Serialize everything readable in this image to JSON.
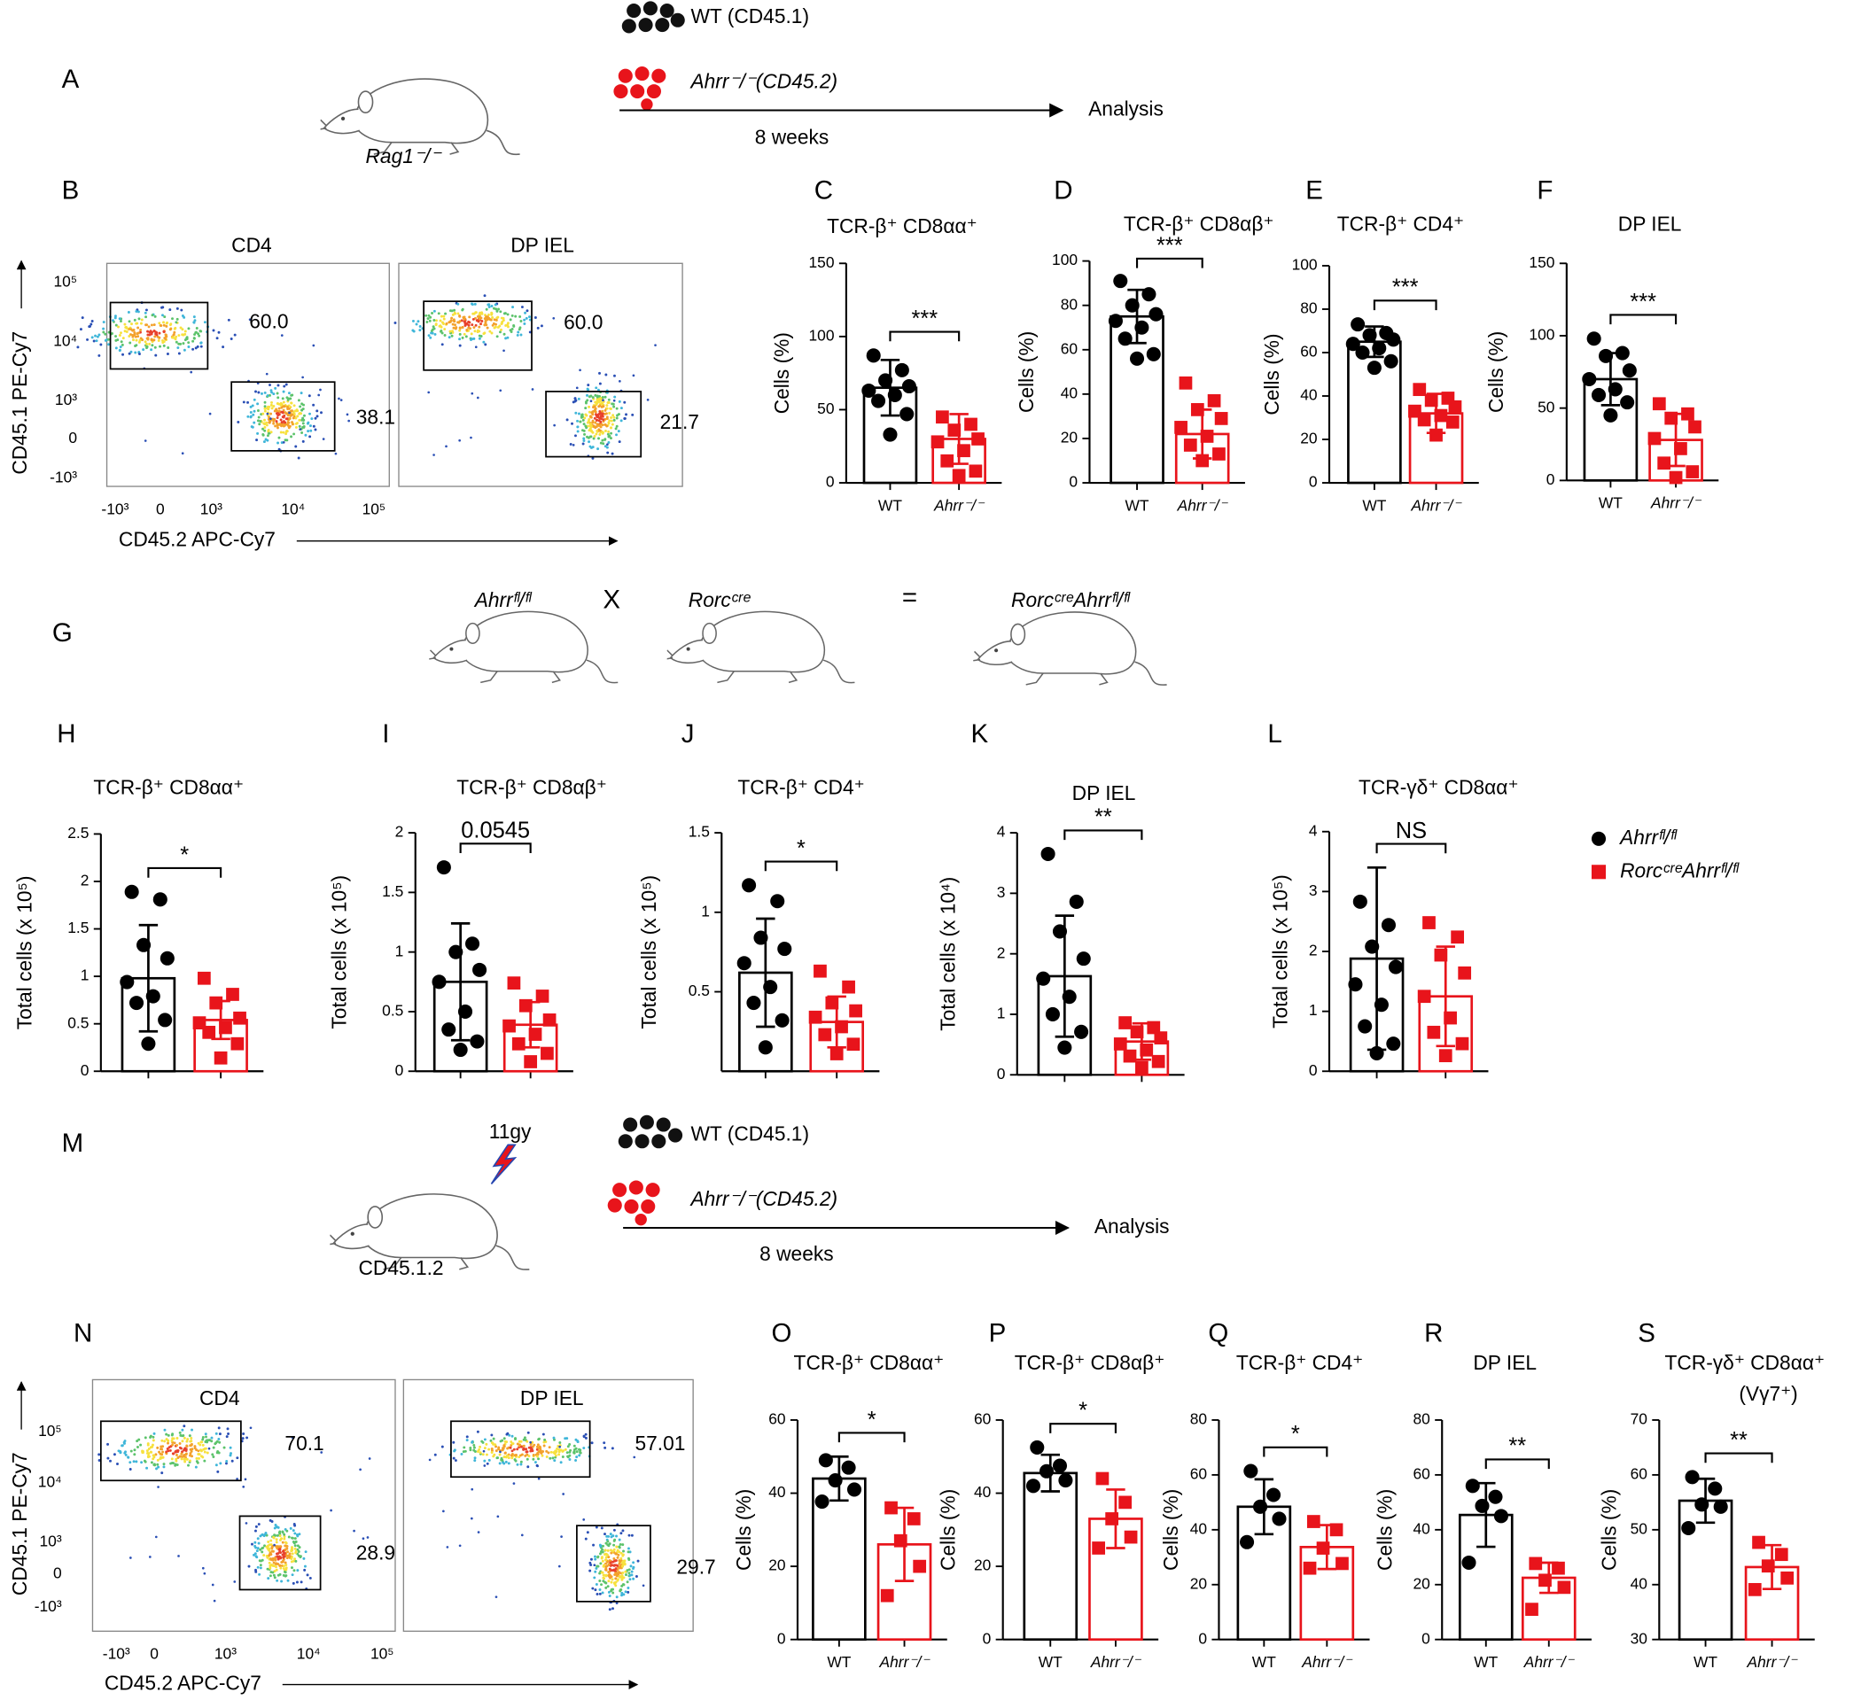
{
  "panel_A": {
    "letter": "A",
    "donor_wt": "WT (CD45.1)",
    "donor_ko": "Ahrr⁻/⁻(CD45.2)",
    "readout": "Analysis",
    "duration": "8 weeks",
    "recipient": "Rag1⁻/⁻"
  },
  "panel_G": {
    "letter": "G",
    "parent_1": "Ahrrᶠˡ/ᶠˡ",
    "cross": "X",
    "parent_2": "Rorcᶜʳᵉ",
    "equals": "=",
    "offspring": "RorcᶜʳᵉAhrrᶠˡ/ᶠˡ"
  },
  "panel_M": {
    "letter": "M",
    "irradiation": "11gy",
    "donor_wt": "WT (CD45.1)",
    "donor_ko": "Ahrr⁻/⁻(CD45.2)",
    "readout": "Analysis",
    "duration": "8 weeks",
    "recipient": "CD45.1.2"
  },
  "flow_panels": [
    {
      "letter": "B",
      "ylabel": "CD45.1 PE-Cy7",
      "xlabel": "CD45.2 APC-Cy7",
      "yticks": [
        "10⁵",
        "10⁴",
        "10³",
        "0",
        "-10³"
      ],
      "xticks": [
        "-10³",
        "0",
        "10³",
        "10⁴",
        "10⁵"
      ],
      "plots": [
        {
          "title": "CD4",
          "gates": [
            "60.0",
            "38.1"
          ]
        },
        {
          "title": "DP IEL",
          "gates": [
            "60.0",
            "21.7"
          ]
        }
      ]
    },
    {
      "letter": "N",
      "ylabel": "CD45.1 PE-Cy7",
      "xlabel": "CD45.2 APC-Cy7",
      "yticks": [
        "10⁵",
        "10⁴",
        "10³",
        "0",
        "-10³"
      ],
      "xticks": [
        "-10³",
        "0",
        "10³",
        "10⁴",
        "10⁵"
      ],
      "plots": [
        {
          "title": "CD4",
          "gates": [
            "70.1",
            "28.9"
          ]
        },
        {
          "title": "DP IEL",
          "gates": [
            "57.01",
            "29.7"
          ]
        }
      ]
    }
  ],
  "legend": {
    "entries": [
      {
        "name": "Ahrrᶠˡ/ᶠˡ",
        "color": "#000000",
        "marker": "circle"
      },
      {
        "name": "RorcᶜʳᵉAhrrᶠˡ/ᶠˡ",
        "color": "#e8141b",
        "marker": "square"
      }
    ]
  },
  "chart_data": [
    {
      "type": "bar",
      "letter": "C",
      "title": "TCR-β⁺ CD8αα⁺",
      "ylabel": "Cells (%)",
      "categories": [
        "WT",
        "Ahrr⁻/⁻"
      ],
      "values": [
        65,
        30
      ],
      "errors": [
        19,
        17
      ],
      "points": [
        [
          87,
          77,
          70,
          66,
          63,
          60,
          56,
          47,
          33
        ],
        [
          45,
          40,
          36,
          30,
          28,
          22,
          15,
          8,
          5
        ]
      ],
      "colors": [
        "#000000",
        "#e8141b"
      ],
      "markers": [
        "circle",
        "square"
      ],
      "ylim": [
        0,
        150
      ],
      "yticks": [
        0,
        50,
        100,
        150
      ],
      "significance": "***"
    },
    {
      "type": "bar",
      "letter": "D",
      "title": "TCR-β⁺ CD8αβ⁺",
      "ylabel": "Cells (%)",
      "categories": [
        "WT",
        "Ahrr⁻/⁻"
      ],
      "values": [
        75,
        22
      ],
      "errors": [
        12,
        11
      ],
      "points": [
        [
          91,
          85,
          80,
          76,
          73,
          70,
          65,
          58,
          56
        ],
        [
          45,
          37,
          33,
          29,
          25,
          21,
          17,
          13,
          10
        ]
      ],
      "colors": [
        "#000000",
        "#e8141b"
      ],
      "markers": [
        "circle",
        "square"
      ],
      "ylim": [
        0,
        100
      ],
      "yticks": [
        0,
        20,
        40,
        60,
        80,
        100
      ],
      "significance": "***"
    },
    {
      "type": "bar",
      "letter": "E",
      "title": "TCR-β⁺ CD4⁺",
      "ylabel": "Cells (%)",
      "categories": [
        "WT",
        "Ahrr⁻/⁻"
      ],
      "values": [
        65,
        32
      ],
      "errors": [
        7,
        9
      ],
      "points": [
        [
          73,
          69,
          68,
          66,
          64,
          62,
          60,
          56,
          53
        ],
        [
          43,
          39,
          38,
          35,
          33,
          31,
          29,
          28,
          22
        ]
      ],
      "colors": [
        "#000000",
        "#e8141b"
      ],
      "markers": [
        "circle",
        "square"
      ],
      "ylim": [
        0,
        100
      ],
      "yticks": [
        0,
        20,
        40,
        60,
        80,
        100
      ],
      "significance": "***"
    },
    {
      "type": "bar",
      "letter": "F",
      "title": "DP IEL",
      "ylabel": "Cells (%)",
      "categories": [
        "WT",
        "Ahrr⁻/⁻"
      ],
      "values": [
        70,
        28
      ],
      "errors": [
        18,
        18
      ],
      "points": [
        [
          98,
          88,
          86,
          76,
          70,
          63,
          59,
          54,
          45
        ],
        [
          53,
          46,
          43,
          37,
          29,
          22,
          12,
          6,
          2
        ]
      ],
      "colors": [
        "#000000",
        "#e8141b"
      ],
      "markers": [
        "circle",
        "square"
      ],
      "ylim": [
        0,
        150
      ],
      "yticks": [
        0,
        50,
        100,
        150
      ],
      "significance": "***"
    },
    {
      "type": "bar",
      "letter": "H",
      "title": "TCR-β⁺ CD8αα⁺",
      "ylabel": "Total cells (x 10⁵)",
      "categories": [
        null,
        null
      ],
      "values": [
        0.98,
        0.54
      ],
      "errors": [
        0.56,
        0.2
      ],
      "points": [
        [
          1.89,
          1.81,
          1.33,
          1.19,
          0.94,
          0.79,
          0.72,
          0.54,
          0.29
        ],
        [
          0.98,
          0.81,
          0.72,
          0.56,
          0.51,
          0.46,
          0.41,
          0.29,
          0.14
        ]
      ],
      "colors": [
        "#000000",
        "#e8141b"
      ],
      "markers": [
        "circle",
        "square"
      ],
      "ylim": [
        0,
        2.5
      ],
      "yticks": [
        0,
        0.5,
        1,
        1.5,
        2,
        2.5
      ],
      "significance": "*"
    },
    {
      "type": "bar",
      "letter": "I",
      "title": "TCR-β⁺ CD8αβ⁺",
      "ylabel": "Total cells (x 10⁵)",
      "categories": [
        null,
        null
      ],
      "values": [
        0.75,
        0.39
      ],
      "errors": [
        0.49,
        0.19
      ],
      "points": [
        [
          1.71,
          1.07,
          1.0,
          0.85,
          0.75,
          0.5,
          0.35,
          0.25,
          0.18
        ],
        [
          0.74,
          0.63,
          0.55,
          0.43,
          0.38,
          0.31,
          0.23,
          0.15,
          0.08
        ]
      ],
      "colors": [
        "#000000",
        "#e8141b"
      ],
      "markers": [
        "circle",
        "square"
      ],
      "ylim": [
        0,
        2
      ],
      "yticks": [
        0,
        0.5,
        1,
        1.5,
        2
      ],
      "significance": "0.0545"
    },
    {
      "type": "bar",
      "letter": "J",
      "title": "TCR-β⁺ CD4⁺",
      "ylabel": "Total cells (x 10⁵)",
      "categories": [
        null,
        null
      ],
      "values": [
        0.62,
        0.31
      ],
      "errors": [
        0.34,
        0.16
      ],
      "points": [
        [
          1.17,
          1.07,
          0.84,
          0.77,
          0.68,
          0.53,
          0.43,
          0.32,
          0.15
        ],
        [
          0.63,
          0.53,
          0.43,
          0.38,
          0.34,
          0.28,
          0.23,
          0.17,
          0.11
        ]
      ],
      "colors": [
        "#000000",
        "#e8141b"
      ],
      "markers": [
        "circle",
        "square"
      ],
      "ylim": [
        0,
        1.5
      ],
      "yticks": [
        0.5,
        1,
        1.5
      ],
      "significance": "*"
    },
    {
      "type": "bar",
      "letter": "K",
      "title": "DP IEL",
      "ylabel": "Total cells (x 10⁴)",
      "categories": [
        null,
        null
      ],
      "values": [
        1.63,
        0.55
      ],
      "errors": [
        1.0,
        0.3
      ],
      "points": [
        [
          3.65,
          2.86,
          2.37,
          1.92,
          1.59,
          1.29,
          1.0,
          0.71,
          0.45
        ],
        [
          0.86,
          0.78,
          0.71,
          0.61,
          0.51,
          0.41,
          0.31,
          0.22,
          0.12
        ]
      ],
      "colors": [
        "#000000",
        "#e8141b"
      ],
      "markers": [
        "circle",
        "square"
      ],
      "ylim": [
        0,
        4
      ],
      "yticks": [
        0,
        1,
        2,
        3,
        4
      ],
      "significance": "**"
    },
    {
      "type": "bar",
      "letter": "L",
      "title": "TCR-γδ⁺ CD8αα⁺",
      "ylabel": "Total cells (x 10⁵)",
      "categories": [
        null,
        null
      ],
      "values": [
        1.88,
        1.25
      ],
      "errors": [
        1.52,
        0.83
      ],
      "points": [
        [
          2.83,
          2.44,
          2.08,
          1.74,
          1.45,
          1.11,
          0.75,
          0.46,
          0.3
        ],
        [
          2.48,
          2.24,
          1.94,
          1.64,
          1.25,
          0.89,
          0.65,
          0.46,
          0.26
        ]
      ],
      "colors": [
        "#000000",
        "#e8141b"
      ],
      "markers": [
        "circle",
        "square"
      ],
      "ylim": [
        0,
        4
      ],
      "yticks": [
        0,
        1,
        2,
        3,
        4
      ],
      "significance": "NS"
    },
    {
      "type": "bar",
      "letter": "O",
      "title": "TCR-β⁺ CD8αα⁺",
      "ylabel": "Cells (%)",
      "categories": [
        "WT",
        "Ahrr⁻/⁻"
      ],
      "values": [
        44,
        26
      ],
      "errors": [
        6,
        10
      ],
      "points": [
        [
          49,
          47,
          43.5,
          41,
          37.7
        ],
        [
          36,
          33,
          27,
          20,
          12
        ]
      ],
      "colors": [
        "#000000",
        "#e8141b"
      ],
      "markers": [
        "circle",
        "square"
      ],
      "ylim": [
        0,
        60
      ],
      "yticks": [
        0,
        20,
        40,
        60
      ],
      "significance": "*"
    },
    {
      "type": "bar",
      "letter": "P",
      "title": "TCR-β⁺ CD8αβ⁺",
      "ylabel": "Cells (%)",
      "categories": [
        "WT",
        "Ahrr⁻/⁻"
      ],
      "values": [
        45.5,
        33
      ],
      "errors": [
        5,
        8
      ],
      "points": [
        [
          52.5,
          47.5,
          46,
          43.5,
          42
        ],
        [
          44,
          37.5,
          33,
          28,
          25
        ]
      ],
      "colors": [
        "#000000",
        "#e8141b"
      ],
      "markers": [
        "circle",
        "square"
      ],
      "ylim": [
        0,
        60
      ],
      "yticks": [
        0,
        20,
        40,
        60
      ],
      "significance": "*"
    },
    {
      "type": "bar",
      "letter": "Q",
      "title": "TCR-β⁺ CD4⁺",
      "ylabel": "Cells (%)",
      "categories": [
        "WT",
        "Ahrr⁻/⁻"
      ],
      "values": [
        48.4,
        33.7
      ],
      "errors": [
        10,
        8
      ],
      "points": [
        [
          61.4,
          52.7,
          48.4,
          44,
          35.5
        ],
        [
          43,
          40,
          33.3,
          27.7,
          26
        ]
      ],
      "colors": [
        "#000000",
        "#e8141b"
      ],
      "markers": [
        "circle",
        "square"
      ],
      "ylim": [
        0,
        80
      ],
      "yticks": [
        0,
        20,
        40,
        60,
        80
      ],
      "significance": "*"
    },
    {
      "type": "bar",
      "letter": "R",
      "title": "DP IEL",
      "ylabel": "Cells (%)",
      "categories": [
        "WT",
        "Ahrr⁻/⁻"
      ],
      "values": [
        45.4,
        22.5
      ],
      "errors": [
        11.6,
        5.5
      ],
      "points": [
        [
          56,
          52,
          48.7,
          45,
          28
        ],
        [
          27.7,
          26,
          21.6,
          19,
          11
        ]
      ],
      "colors": [
        "#000000",
        "#e8141b"
      ],
      "markers": [
        "circle",
        "square"
      ],
      "ylim": [
        0,
        80
      ],
      "yticks": [
        0,
        20,
        40,
        60,
        80
      ],
      "significance": "**"
    },
    {
      "type": "bar",
      "letter": "S",
      "title": "TCR-γδ⁺ CD8αα⁺",
      "subtitle": "(Vγ7⁺)",
      "ylabel": "Cells (%)",
      "categories": [
        "WT",
        "Ahrr⁻/⁻"
      ],
      "values": [
        55.3,
        43.2
      ],
      "errors": [
        4,
        4
      ],
      "points": [
        [
          59.6,
          57.5,
          54.6,
          54.2,
          50.3
        ],
        [
          47.7,
          45.5,
          43.4,
          41.2,
          39.1
        ]
      ],
      "colors": [
        "#000000",
        "#e8141b"
      ],
      "markers": [
        "circle",
        "square"
      ],
      "ylim": [
        30,
        70
      ],
      "yticks": [
        30,
        40,
        50,
        60,
        70
      ],
      "significance": "**"
    }
  ]
}
